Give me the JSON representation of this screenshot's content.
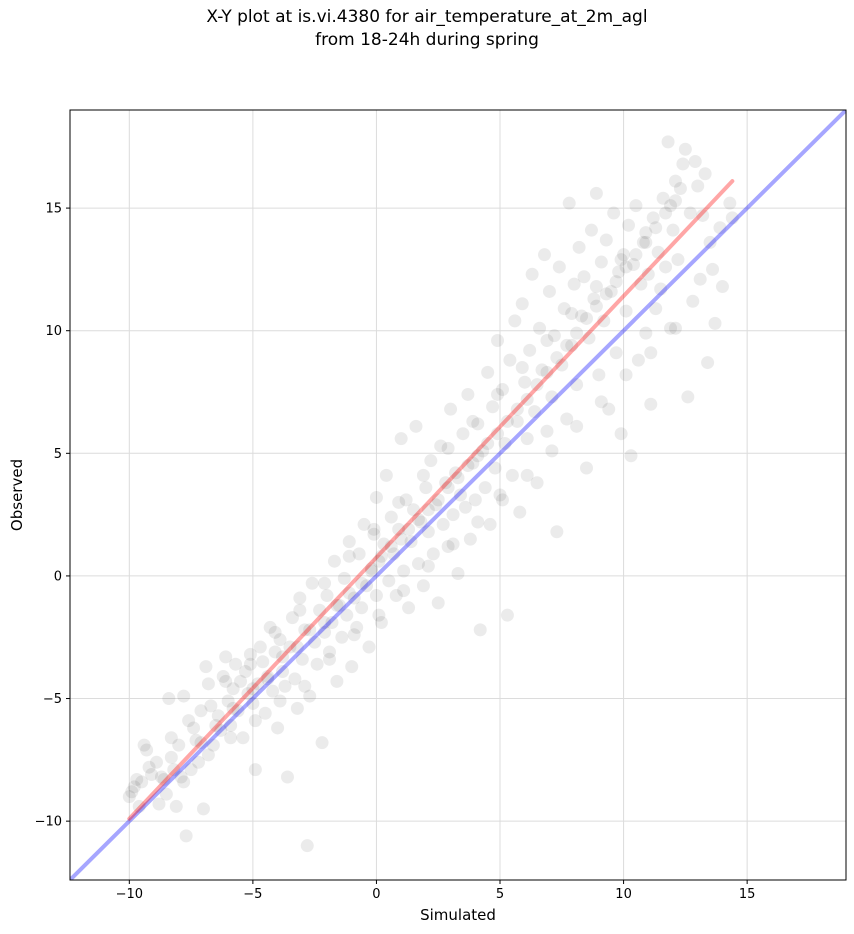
{
  "chart_data": {
    "type": "scatter",
    "title": "X-Y plot at is.vi.4380 for air_temperature_at_2m_agl",
    "subtitle": "from 18-24h during spring",
    "xlabel": "Simulated",
    "ylabel": "Observed",
    "xlim": [
      -12.4,
      19.0
    ],
    "ylim": [
      -12.4,
      19.0
    ],
    "xticks": [
      -10,
      -5,
      0,
      5,
      10,
      15
    ],
    "yticks": [
      -10,
      -5,
      0,
      5,
      10,
      15
    ],
    "xtick_labels": [
      "−10",
      "−5",
      "0",
      "5",
      "10",
      "15"
    ],
    "ytick_labels": [
      "−10",
      "−5",
      "0",
      "5",
      "10",
      "15"
    ],
    "grid": true,
    "point_color": "#000000",
    "point_opacity": 0.08,
    "reference_lines": [
      {
        "kind": "identity",
        "color": "#0000ff",
        "opacity": 0.35,
        "x": [
          -12.4,
          19.0
        ],
        "y": [
          -12.4,
          19.0
        ]
      },
      {
        "kind": "regression-fit",
        "color": "#ff0000",
        "opacity": 0.35,
        "x": [
          -10.0,
          14.4
        ],
        "y": [
          -9.9,
          16.1
        ]
      }
    ],
    "points": [
      [
        -10,
        -9
      ],
      [
        -9.8,
        -8.6
      ],
      [
        -9.7,
        -8.3
      ],
      [
        -9.5,
        -8.4
      ],
      [
        -9.4,
        -6.9
      ],
      [
        -9.2,
        -7.8
      ],
      [
        -8.9,
        -7.6
      ],
      [
        -8.7,
        -8.2
      ],
      [
        -8.5,
        -8.9
      ],
      [
        -8.4,
        -5
      ],
      [
        -8.3,
        -7.4
      ],
      [
        -8.1,
        -9.4
      ],
      [
        -8,
        -6.9
      ],
      [
        -7.9,
        -8.2
      ],
      [
        -7.8,
        -4.9
      ],
      [
        -7.7,
        -10.6
      ],
      [
        -7.6,
        -5.9
      ],
      [
        -7.5,
        -7.9
      ],
      [
        -7.4,
        -6.2
      ],
      [
        -7.2,
        -7.6
      ],
      [
        -7.1,
        -6.8
      ],
      [
        -7,
        -9.5
      ],
      [
        -6.9,
        -3.7
      ],
      [
        -6.8,
        -4.4
      ],
      [
        -6.7,
        -5.3
      ],
      [
        -6.6,
        -6.9
      ],
      [
        -6.4,
        -5.7
      ],
      [
        -6.3,
        -6.3
      ],
      [
        -6.2,
        -4.1
      ],
      [
        -6.1,
        -3.3
      ],
      [
        -6,
        -5.1
      ],
      [
        -5.9,
        -6.1
      ],
      [
        -5.8,
        -4.6
      ],
      [
        -5.7,
        -3.6
      ],
      [
        -5.6,
        -5.5
      ],
      [
        -5.5,
        -4.3
      ],
      [
        -5.4,
        -6.6
      ],
      [
        -5.3,
        -3.9
      ],
      [
        -5.2,
        -4.8
      ],
      [
        -5.1,
        -3.2
      ],
      [
        -5,
        -5.2
      ],
      [
        -4.9,
        -7.9
      ],
      [
        -4.8,
        -4.4
      ],
      [
        -4.7,
        -2.9
      ],
      [
        -4.6,
        -3.5
      ],
      [
        -4.5,
        -5.6
      ],
      [
        -4.4,
        -4.1
      ],
      [
        -4.3,
        -2.1
      ],
      [
        -4.2,
        -4.7
      ],
      [
        -4.1,
        -3.1
      ],
      [
        -4,
        -6.2
      ],
      [
        -3.9,
        -2.6
      ],
      [
        -3.8,
        -3.9
      ],
      [
        -3.7,
        -4.5
      ],
      [
        -3.6,
        -8.2
      ],
      [
        -3.5,
        -2.9
      ],
      [
        -3.4,
        -1.7
      ],
      [
        -3.3,
        -4.2
      ],
      [
        -3.2,
        -5.4
      ],
      [
        -3.1,
        -0.9
      ],
      [
        -3,
        -3.4
      ],
      [
        -2.9,
        -2.2
      ],
      [
        -2.8,
        -11
      ],
      [
        -2.7,
        -4.9
      ],
      [
        -2.6,
        -0.3
      ],
      [
        -2.5,
        -2.7
      ],
      [
        -2.4,
        -3.6
      ],
      [
        -2.3,
        -1.4
      ],
      [
        -2.2,
        -6.8
      ],
      [
        -2.1,
        -2.3
      ],
      [
        -2,
        -0.8
      ],
      [
        -1.9,
        -3.1
      ],
      [
        -1.8,
        -1.9
      ],
      [
        -1.7,
        0.6
      ],
      [
        -1.6,
        -4.3
      ],
      [
        -1.5,
        -1.2
      ],
      [
        -1.4,
        -2.5
      ],
      [
        -1.3,
        -0.1
      ],
      [
        -1.2,
        -1.6
      ],
      [
        -1.1,
        1.4
      ],
      [
        -1,
        -3.7
      ],
      [
        -0.9,
        -0.9
      ],
      [
        -0.8,
        -2.1
      ],
      [
        -0.7,
        0.9
      ],
      [
        -0.6,
        -1.3
      ],
      [
        -0.5,
        2.1
      ],
      [
        -0.4,
        -0.4
      ],
      [
        -0.3,
        -2.9
      ],
      [
        -0.2,
        0.3
      ],
      [
        -0.1,
        1.7
      ],
      [
        0,
        -0.8
      ],
      [
        0,
        3.2
      ],
      [
        0.1,
        0.6
      ],
      [
        0.2,
        -1.9
      ],
      [
        0.3,
        1.3
      ],
      [
        0.4,
        4.1
      ],
      [
        0.5,
        -0.2
      ],
      [
        0.6,
        2.4
      ],
      [
        0.7,
        0.9
      ],
      [
        0.8,
        -0.8
      ],
      [
        0.9,
        1.9
      ],
      [
        1,
        5.6
      ],
      [
        1.1,
        0.2
      ],
      [
        1.2,
        3.1
      ],
      [
        1.3,
        -1.3
      ],
      [
        1.4,
        1.4
      ],
      [
        1.5,
        2.7
      ],
      [
        1.6,
        6.1
      ],
      [
        1.7,
        0.5
      ],
      [
        1.8,
        2.2
      ],
      [
        1.9,
        -0.4
      ],
      [
        2,
        3.6
      ],
      [
        2.1,
        1.8
      ],
      [
        2.2,
        4.7
      ],
      [
        2.3,
        0.9
      ],
      [
        2.4,
        2.9
      ],
      [
        2.5,
        -1.1
      ],
      [
        2.6,
        5.3
      ],
      [
        2.7,
        2.1
      ],
      [
        2.8,
        3.8
      ],
      [
        2.9,
        1.2
      ],
      [
        3,
        6.8
      ],
      [
        3.1,
        2.5
      ],
      [
        3.2,
        4.2
      ],
      [
        3.3,
        0.1
      ],
      [
        3.4,
        3.3
      ],
      [
        3.5,
        5.8
      ],
      [
        3.6,
        2.8
      ],
      [
        3.7,
        7.4
      ],
      [
        3.8,
        1.5
      ],
      [
        3.9,
        4.6
      ],
      [
        4,
        3.1
      ],
      [
        4.1,
        6.2
      ],
      [
        4.2,
        -2.2
      ],
      [
        4.3,
        5.1
      ],
      [
        4.4,
        3.6
      ],
      [
        4.5,
        8.3
      ],
      [
        4.6,
        2.1
      ],
      [
        4.7,
        6.9
      ],
      [
        4.8,
        4.4
      ],
      [
        4.9,
        9.6
      ],
      [
        5,
        3.3
      ],
      [
        5.1,
        7.6
      ],
      [
        5.2,
        5.4
      ],
      [
        5.3,
        -1.6
      ],
      [
        5.4,
        8.8
      ],
      [
        5.5,
        4.1
      ],
      [
        5.6,
        10.4
      ],
      [
        5.7,
        6.3
      ],
      [
        5.8,
        2.6
      ],
      [
        5.9,
        11.1
      ],
      [
        6,
        7.9
      ],
      [
        6.1,
        5.6
      ],
      [
        6.2,
        9.2
      ],
      [
        6.3,
        12.3
      ],
      [
        6.4,
        6.7
      ],
      [
        6.5,
        3.8
      ],
      [
        6.6,
        10.1
      ],
      [
        6.7,
        8.4
      ],
      [
        6.8,
        13.1
      ],
      [
        6.9,
        5.9
      ],
      [
        7,
        11.6
      ],
      [
        7.1,
        7.3
      ],
      [
        7.2,
        9.8
      ],
      [
        7.3,
        1.8
      ],
      [
        7.4,
        12.6
      ],
      [
        7.5,
        8.6
      ],
      [
        7.6,
        10.9
      ],
      [
        7.7,
        6.4
      ],
      [
        7.8,
        15.2
      ],
      [
        7.9,
        9.4
      ],
      [
        8,
        11.9
      ],
      [
        8.1,
        7.8
      ],
      [
        8.2,
        13.4
      ],
      [
        8.3,
        10.6
      ],
      [
        8.4,
        12.2
      ],
      [
        8.5,
        4.4
      ],
      [
        8.6,
        9.7
      ],
      [
        8.7,
        14.1
      ],
      [
        8.8,
        11.3
      ],
      [
        8.9,
        15.6
      ],
      [
        9,
        8.2
      ],
      [
        9.1,
        12.8
      ],
      [
        9.2,
        10.4
      ],
      [
        9.3,
        13.7
      ],
      [
        9.4,
        6.8
      ],
      [
        9.5,
        11.6
      ],
      [
        9.6,
        14.8
      ],
      [
        9.7,
        9.1
      ],
      [
        9.8,
        12.4
      ],
      [
        9.9,
        5.8
      ],
      [
        10,
        13.1
      ],
      [
        10.1,
        10.8
      ],
      [
        10.2,
        14.3
      ],
      [
        10.3,
        4.9
      ],
      [
        10.4,
        12.7
      ],
      [
        10.5,
        15.1
      ],
      [
        10.6,
        8.8
      ],
      [
        10.7,
        11.9
      ],
      [
        10.8,
        13.6
      ],
      [
        10.9,
        9.9
      ],
      [
        11,
        12.3
      ],
      [
        11.1,
        7
      ],
      [
        11.2,
        14.6
      ],
      [
        11.3,
        10.9
      ],
      [
        11.4,
        13.2
      ],
      [
        11.5,
        11.7
      ],
      [
        11.6,
        15.4
      ],
      [
        11.7,
        12.6
      ],
      [
        11.8,
        17.7
      ],
      [
        11.9,
        10.1
      ],
      [
        12,
        14.1
      ],
      [
        12.1,
        16.1
      ],
      [
        12.2,
        12.9
      ],
      [
        12.3,
        15.8
      ],
      [
        12.4,
        16.8
      ],
      [
        12.5,
        17.4
      ],
      [
        12.6,
        7.3
      ],
      [
        12.7,
        14.8
      ],
      [
        12.8,
        11.2
      ],
      [
        12.9,
        16.9
      ],
      [
        13,
        15.9
      ],
      [
        13.1,
        12.1
      ],
      [
        13.2,
        14.7
      ],
      [
        13.3,
        16.4
      ],
      [
        13.4,
        8.7
      ],
      [
        13.5,
        13.6
      ],
      [
        13.6,
        12.5
      ],
      [
        13.7,
        10.3
      ],
      [
        13.9,
        14.2
      ],
      [
        14,
        11.8
      ],
      [
        14.3,
        15.2
      ],
      [
        14.4,
        14.6
      ],
      [
        -9.9,
        -8.8
      ],
      [
        -9.1,
        -8.1
      ],
      [
        -8.6,
        -8.3
      ],
      [
        -8.2,
        -7.9
      ],
      [
        -7.3,
        -6.7
      ],
      [
        -6.5,
        -6.1
      ],
      [
        -5.8,
        -5.4
      ],
      [
        -5,
        -4.6
      ],
      [
        -4.4,
        -4.2
      ],
      [
        -3.8,
        -3.3
      ],
      [
        -3.2,
        -2.9
      ],
      [
        -2.7,
        -2.2
      ],
      [
        -2.1,
        -1.9
      ],
      [
        -1.6,
        -1.2
      ],
      [
        -1.1,
        -0.7
      ],
      [
        -0.6,
        -0.3
      ],
      [
        -0.2,
        0.2
      ],
      [
        0.2,
        0.8
      ],
      [
        0.6,
        1.2
      ],
      [
        1,
        1.5
      ],
      [
        1.3,
        1.9
      ],
      [
        1.7,
        2.3
      ],
      [
        2.1,
        2.7
      ],
      [
        2.5,
        3.1
      ],
      [
        2.9,
        3.6
      ],
      [
        3.3,
        4
      ],
      [
        3.7,
        4.5
      ],
      [
        4.1,
        4.9
      ],
      [
        4.5,
        5.4
      ],
      [
        4.9,
        5.8
      ],
      [
        5.3,
        6.3
      ],
      [
        5.7,
        6.8
      ],
      [
        6.1,
        7.2
      ],
      [
        6.5,
        7.8
      ],
      [
        6.9,
        8.3
      ],
      [
        7.3,
        8.9
      ],
      [
        7.7,
        9.4
      ],
      [
        8.1,
        9.9
      ],
      [
        8.5,
        10.5
      ],
      [
        8.9,
        11
      ],
      [
        9.3,
        11.5
      ],
      [
        9.7,
        12
      ],
      [
        10.1,
        12.6
      ],
      [
        10.5,
        13.1
      ],
      [
        10.9,
        13.6
      ],
      [
        11.3,
        14.2
      ],
      [
        11.7,
        14.8
      ],
      [
        12.1,
        15.3
      ],
      [
        -9.6,
        -9.4
      ],
      [
        -8.8,
        -9.3
      ],
      [
        -7.8,
        -8.4
      ],
      [
        -6.8,
        -7.3
      ],
      [
        -5.9,
        -6.6
      ],
      [
        -4.9,
        -5.9
      ],
      [
        -3.9,
        -5.1
      ],
      [
        -2.9,
        -4.5
      ],
      [
        -1.9,
        -3.4
      ],
      [
        -0.9,
        -2.4
      ],
      [
        0.1,
        -1.6
      ],
      [
        1.1,
        -0.6
      ],
      [
        2.1,
        0.4
      ],
      [
        3.1,
        1.3
      ],
      [
        4.1,
        2.2
      ],
      [
        5.1,
        3.1
      ],
      [
        6.1,
        4.1
      ],
      [
        7.1,
        5.1
      ],
      [
        8.1,
        6.1
      ],
      [
        9.1,
        7.1
      ],
      [
        10.1,
        8.2
      ],
      [
        11.1,
        9.1
      ],
      [
        12.1,
        10.1
      ],
      [
        -9.3,
        -7.1
      ],
      [
        -8.3,
        -6.6
      ],
      [
        -7.1,
        -5.5
      ],
      [
        -6.1,
        -4.3
      ],
      [
        -5.1,
        -3.6
      ],
      [
        -4.1,
        -2.3
      ],
      [
        -3.1,
        -1.4
      ],
      [
        -2.1,
        -0.3
      ],
      [
        -1.1,
        0.8
      ],
      [
        -0.1,
        1.9
      ],
      [
        0.9,
        3
      ],
      [
        1.9,
        4.1
      ],
      [
        2.9,
        5.2
      ],
      [
        3.9,
        6.3
      ],
      [
        4.9,
        7.4
      ],
      [
        5.9,
        8.5
      ],
      [
        6.9,
        9.6
      ],
      [
        7.9,
        10.7
      ],
      [
        8.9,
        11.8
      ],
      [
        9.9,
        12.9
      ],
      [
        10.9,
        14
      ],
      [
        11.9,
        15.1
      ]
    ]
  }
}
